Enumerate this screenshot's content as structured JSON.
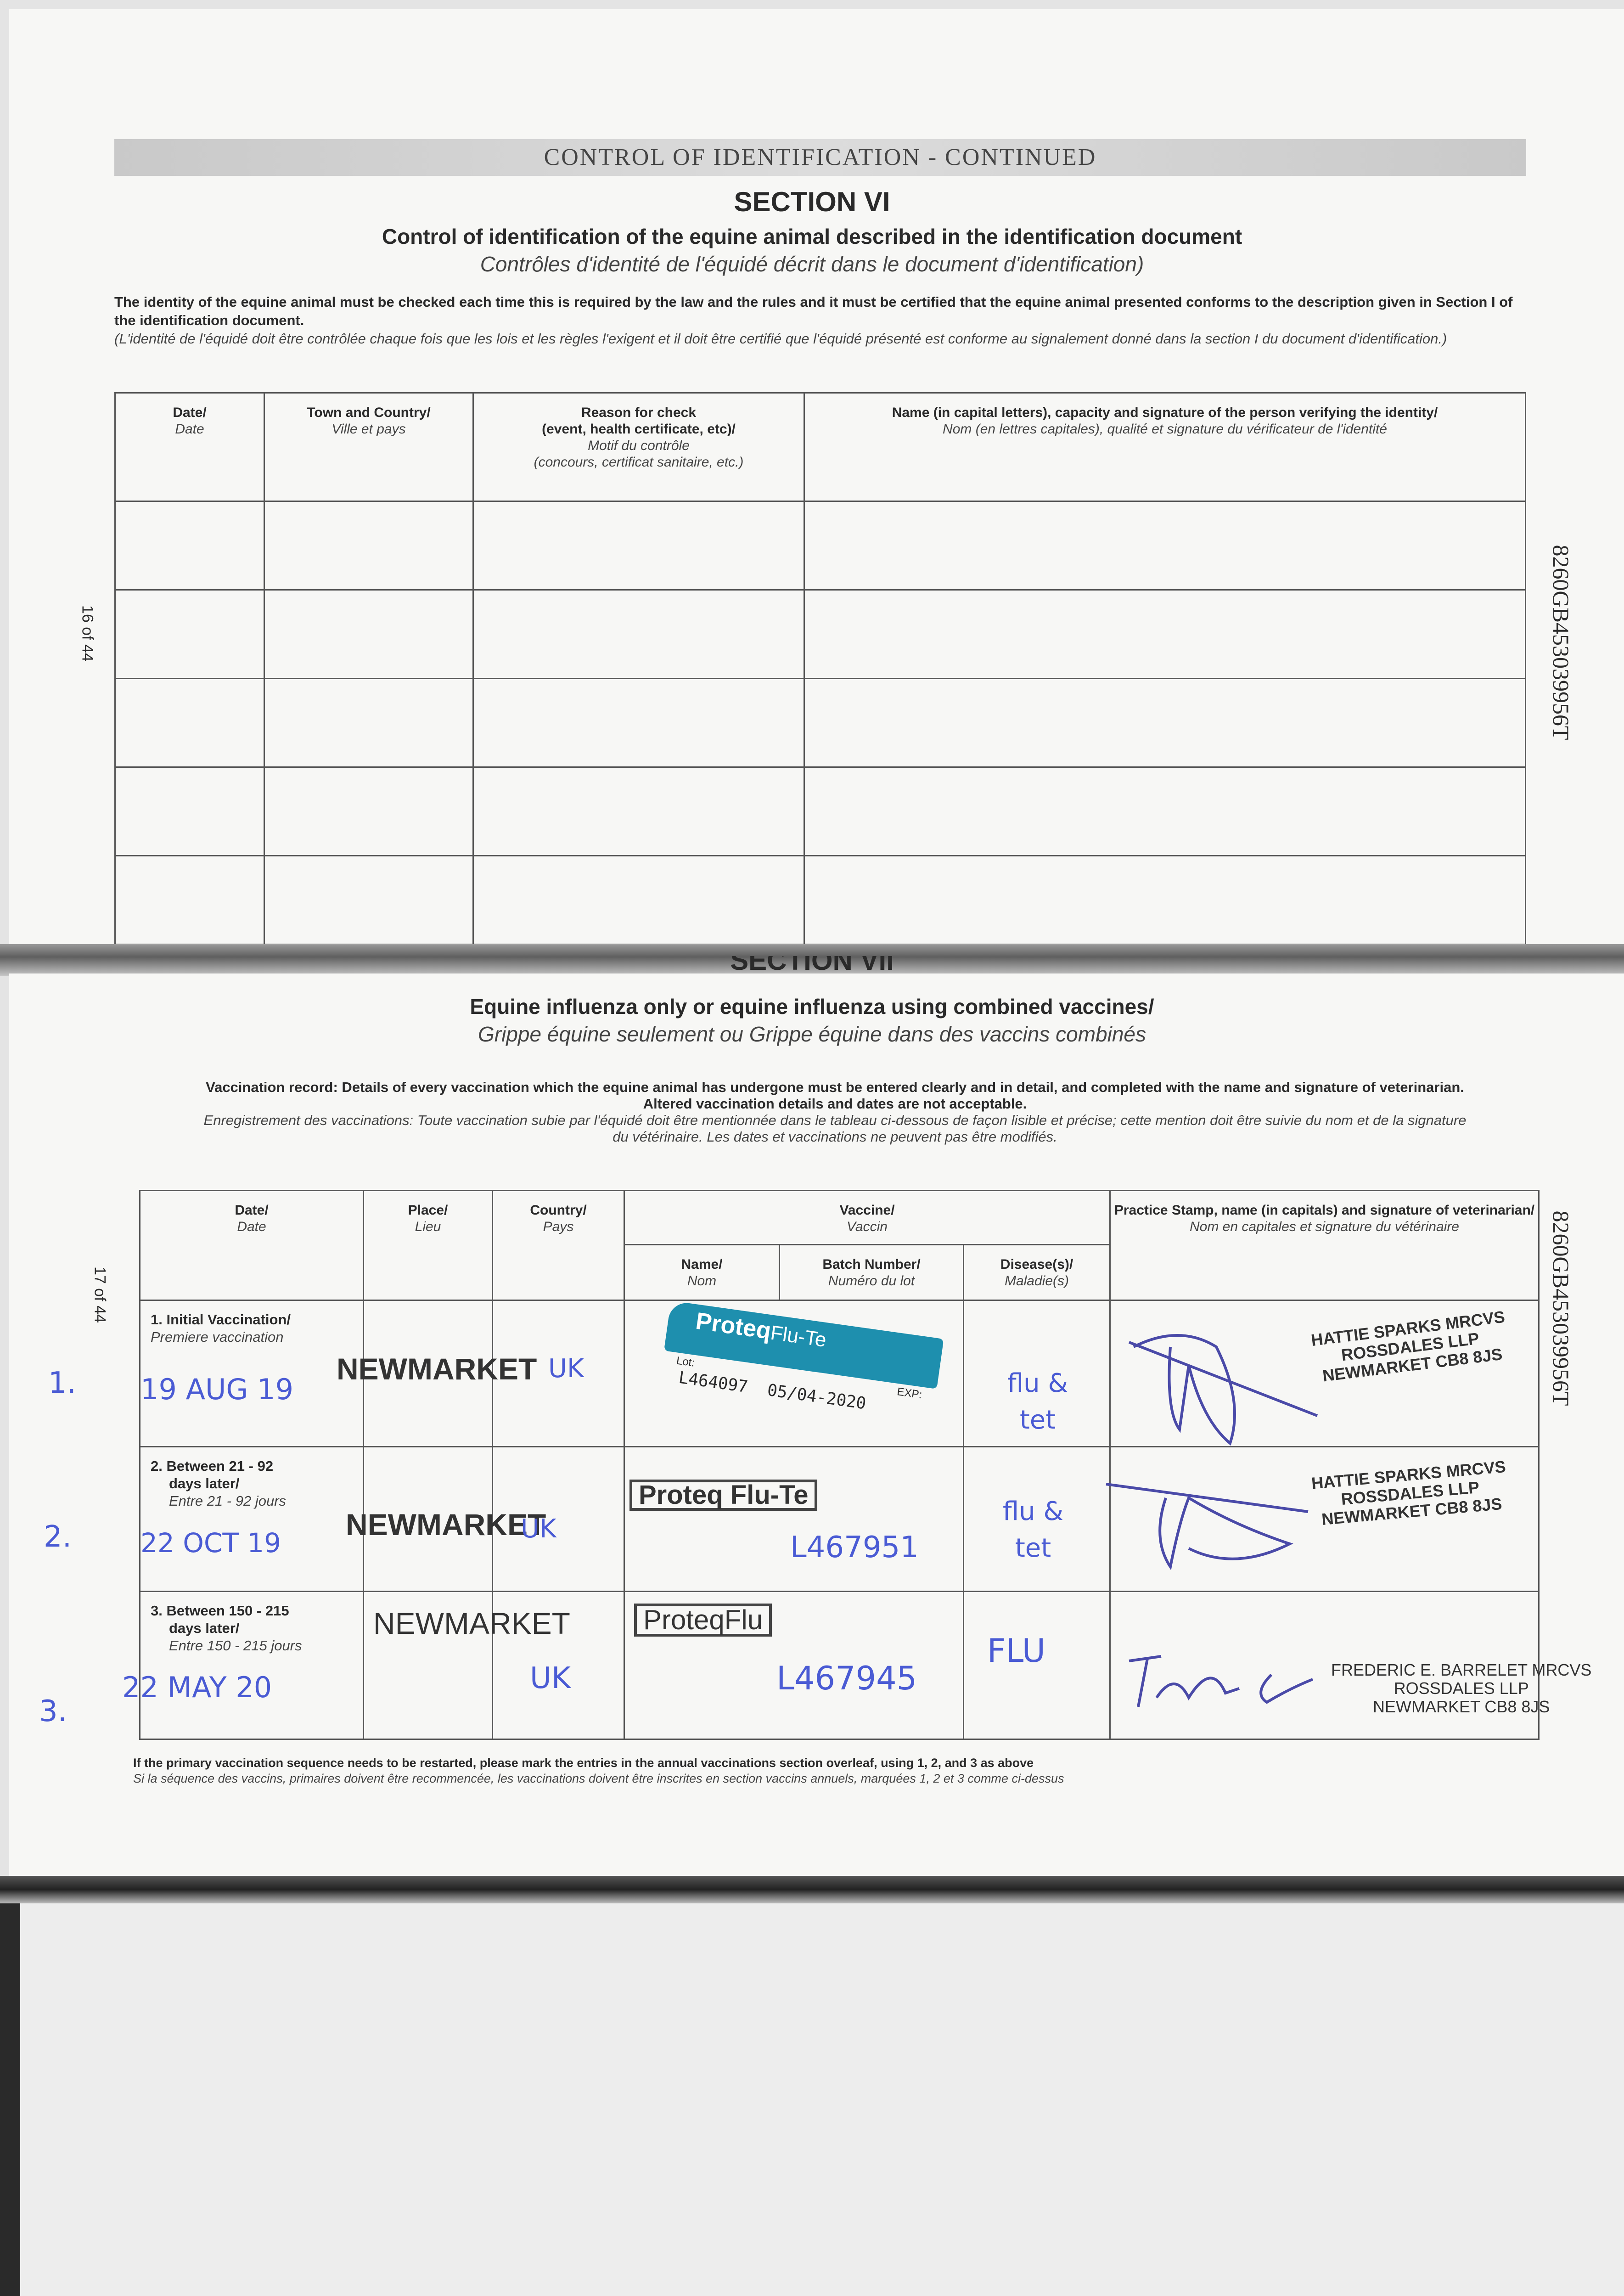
{
  "page1": {
    "banner": "CONTROL OF IDENTIFICATION - CONTINUED",
    "section": "SECTION VI",
    "title": "Control of identification of the equine animal described in the identification document",
    "title_fr": "Contrôles d'identité de l'équidé décrit dans le document d'identification)",
    "intro": "The identity of the equine animal must be checked each time this is required by the law and the rules and it must be certified that the equine animal presented conforms to the description given in Section I of the identification document.",
    "intro_fr": "(L'identité de l'équidé doit être contrôlée chaque fois que les lois et les règles l'exigent et il doit être certifié que l'équidé présenté est conforme au signalement donné dans la section I du document d'identification.)",
    "page_number": "16 of 44",
    "passport_id": "8260GB453039956T",
    "table_headers": [
      {
        "en": "Date/",
        "fr": "Date"
      },
      {
        "en": "Town and Country/",
        "fr": "Ville et pays"
      },
      {
        "en": "Reason for check",
        "en2": "(event, health certificate, etc)/",
        "fr": "Motif du contrôle",
        "fr2": "(concours, certificat sanitaire, etc.)"
      },
      {
        "en": "Name (in capital letters), capacity and signature of the person verifying the identity/",
        "fr": "Nom (en lettres capitales), qualité et signature du vérificateur de l'identité"
      }
    ]
  },
  "page2": {
    "section_cut": "SECTION VII",
    "title": "Equine influenza only or equine influenza using combined vaccines/",
    "title_fr": "Grippe équine seulement ou Grippe équine dans des vaccins combinés",
    "intro": "Vaccination record: Details of every vaccination which the equine animal has undergone must be entered clearly and in detail, and completed with the name and signature of veterinarian.",
    "intro2": "Altered vaccination details and dates are not acceptable.",
    "intro_fr": "Enregistrement des vaccinations: Toute vaccination subie par l'équidé doit être mentionnée dans le tableau ci-dessous de façon lisible et précise; cette mention doit être suivie du nom et de la signature",
    "intro_fr2": "du vétérinaire. Les dates et vaccinations ne peuvent pas être modifiés.",
    "page_number": "17 of 44",
    "passport_id": "8260GB453039956T",
    "headers": {
      "date": {
        "en": "Date/",
        "fr": "Date"
      },
      "place": {
        "en": "Place/",
        "fr": "Lieu"
      },
      "country": {
        "en": "Country/",
        "fr": "Pays"
      },
      "vaccine": {
        "en": "Vaccine/",
        "fr": "Vaccin"
      },
      "name": {
        "en": "Name/",
        "fr": "Nom"
      },
      "batch": {
        "en": "Batch Number/",
        "fr": "Numéro du lot"
      },
      "disease": {
        "en": "Disease(s)/",
        "fr": "Maladie(s)"
      },
      "stamp": {
        "en": "Practice Stamp, name (in capitals) and signature of veterinarian/",
        "fr": "Nom en capitales et signature du vétérinaire"
      }
    },
    "rows": [
      {
        "margin": "1.",
        "label": "1. Initial Vaccination/",
        "label_fr": "Premiere vaccination",
        "date": "19 AUG 19",
        "place": "NEWMARKET",
        "country": "UK",
        "vaccine_brand": "Proteq",
        "vaccine_suffix": "Flu-Te",
        "lot_label": "Lot:",
        "exp_label": "EXP:",
        "batch": "L464097",
        "expiry": "05/04-2020",
        "disease": "flu & tet",
        "vet": [
          "HATTIE SPARKS MRCVS",
          "ROSSDALES LLP",
          "NEWMARKET CB8 8JS"
        ]
      },
      {
        "margin": "2.",
        "label": "2. Between 21 - 92",
        "label2": "days later/",
        "label_fr": "Entre 21 - 92 jours",
        "date": "22 OCT 19",
        "place": "NEWMARKET",
        "country": "UK",
        "vaccine": "Proteq Flu-Te",
        "batch": "L467951",
        "disease": "flu & tet",
        "vet": [
          "HATTIE SPARKS MRCVS",
          "ROSSDALES LLP",
          "NEWMARKET CB8 8JS"
        ]
      },
      {
        "margin": "3.",
        "label": "3. Between 150 - 215",
        "label2": "days later/",
        "label_fr": "Entre 150 - 215 jours",
        "date": "22 MAY 20",
        "place": "NEWMARKET",
        "country": "UK",
        "vaccine": "ProteqFlu",
        "batch": "L467945",
        "disease": "FLU",
        "vet": [
          "FREDERIC E. BARRELET MRCVS",
          "ROSSDALES LLP",
          "NEWMARKET CB8 8JS"
        ]
      }
    ],
    "footnote": "If the primary vaccination sequence needs to be restarted, please mark the entries in the annual vaccinations section overleaf, using 1, 2, and 3 as above",
    "footnote_fr": "Si la séquence des vaccins, primaires doivent être recommencée, les vaccinations doivent être inscrites en section vaccins annuels, marquées 1, 2 et 3 comme ci-dessus"
  },
  "colors": {
    "ink": "#4a5bd4",
    "sticker": "#1e8fae",
    "print": "#2a2a2a"
  }
}
